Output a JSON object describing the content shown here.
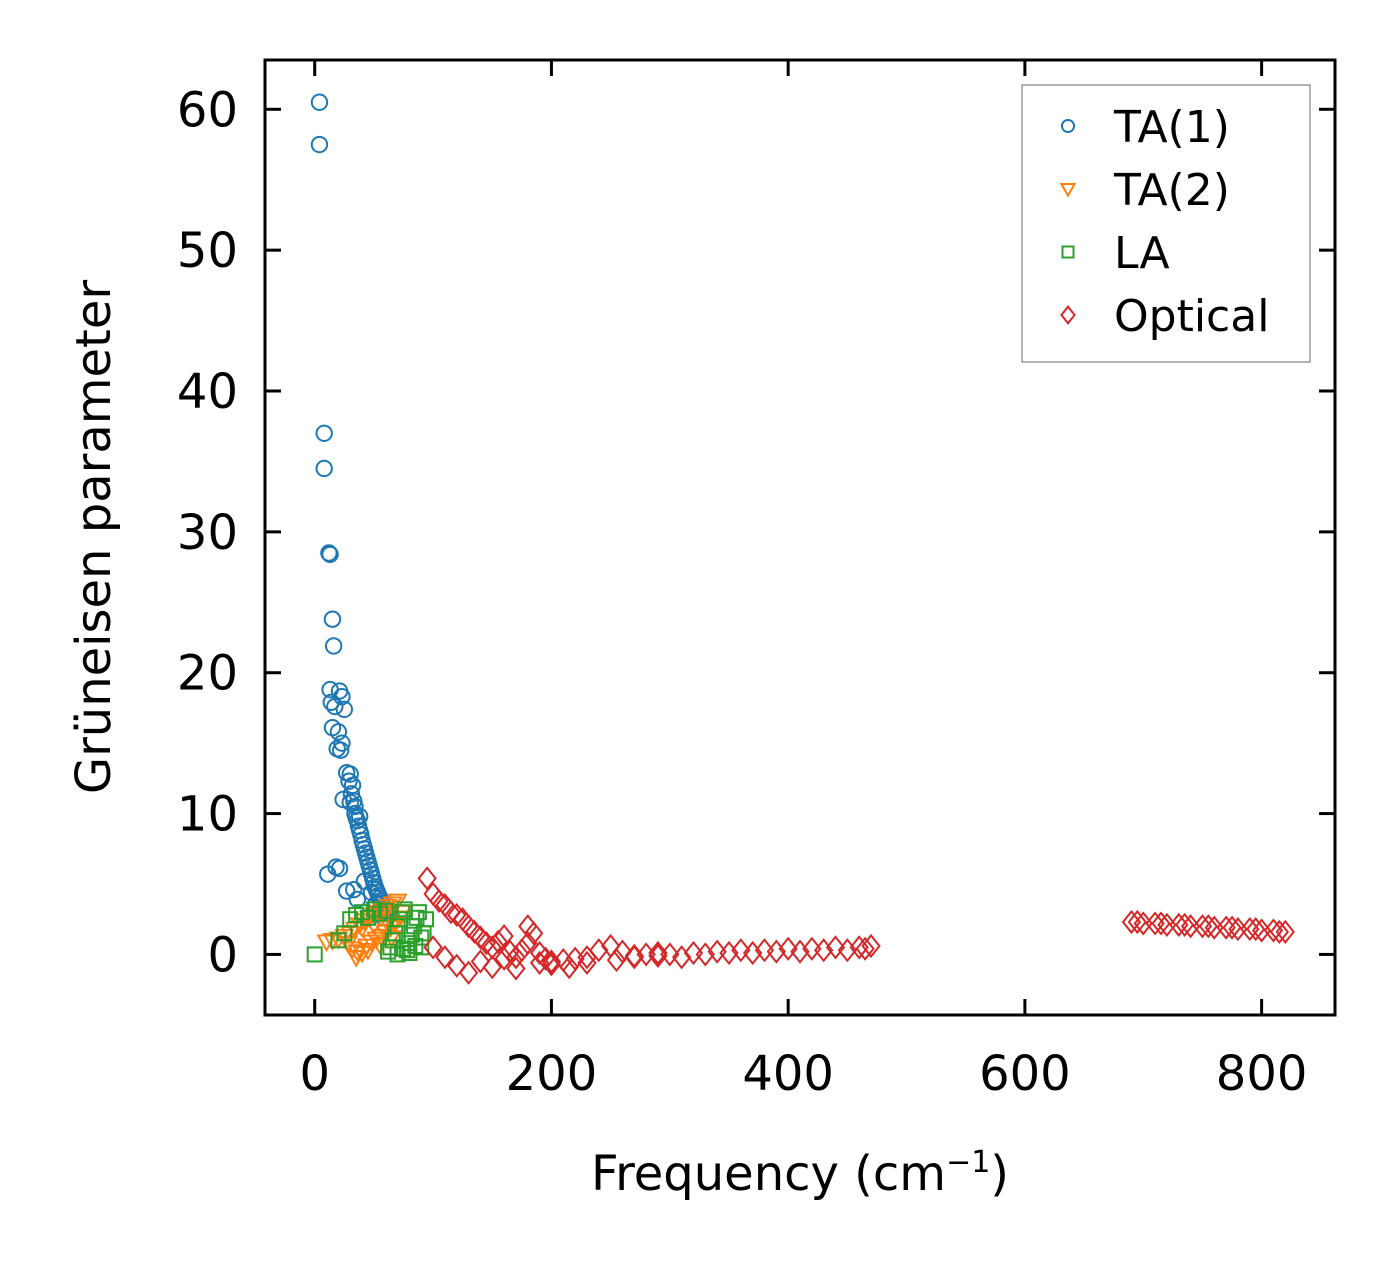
{
  "chart_data": {
    "type": "scatter",
    "title": "",
    "xlabel": "Frequency (cm",
    "xlabel_sup": "−1",
    "xlabel_tail": ")",
    "ylabel": "Grüneisen parameter",
    "xlim": [
      -42,
      862
    ],
    "ylim": [
      -4.3,
      63.5
    ],
    "xticks": [
      0,
      200,
      400,
      600,
      800
    ],
    "yticks": [
      0,
      10,
      20,
      30,
      40,
      50,
      60
    ],
    "xtick_labels": [
      "0",
      "200",
      "400",
      "600",
      "800"
    ],
    "ytick_labels": [
      "0",
      "10",
      "20",
      "30",
      "40",
      "50",
      "60"
    ],
    "legend_position": "top-right",
    "series": [
      {
        "name": "TA(1)",
        "marker": "circle",
        "color": "#1f77b4",
        "x": [
          4,
          4,
          8,
          8,
          12,
          13,
          15,
          16,
          13,
          21,
          23,
          25,
          14,
          17,
          15,
          20,
          23,
          19,
          22,
          27,
          30,
          29,
          32,
          31,
          33,
          34,
          34,
          35,
          36,
          37,
          38,
          39,
          40,
          41,
          42,
          43,
          44,
          45,
          46,
          47,
          48,
          49,
          50,
          51,
          52,
          53,
          54,
          55,
          56,
          57,
          58,
          60,
          62,
          64,
          38,
          30,
          24,
          18,
          11,
          21,
          27,
          33,
          36,
          42,
          48,
          52,
          55,
          58
        ],
        "y": [
          60.5,
          57.5,
          37,
          34.5,
          28.5,
          28.4,
          23.8,
          21.9,
          18.8,
          18.7,
          18.3,
          17.4,
          17.9,
          17.6,
          16.1,
          15.8,
          15.0,
          14.6,
          14.5,
          12.9,
          12.8,
          12.3,
          12.0,
          11.4,
          10.9,
          10.5,
          10.0,
          9.7,
          9.5,
          9.1,
          8.8,
          8.5,
          8.1,
          7.8,
          7.5,
          7.2,
          6.9,
          6.6,
          6.3,
          6.0,
          5.7,
          5.4,
          5.1,
          4.8,
          4.6,
          4.4,
          4.2,
          4.0,
          3.8,
          3.6,
          3.4,
          3.2,
          3.0,
          2.8,
          9.8,
          10.8,
          11.0,
          6.2,
          5.7,
          6.1,
          4.5,
          4.6,
          3.9,
          5.2,
          4.4,
          3.6,
          3.1,
          2.6
        ]
      },
      {
        "name": "TA(2)",
        "marker": "triangle-down",
        "color": "#ff7f0e",
        "x": [
          10,
          15,
          20,
          25,
          28,
          30,
          32,
          34,
          36,
          38,
          40,
          42,
          44,
          46,
          48,
          50,
          52,
          54,
          56,
          58,
          60,
          62,
          64,
          66,
          68,
          70,
          35,
          45,
          55,
          65,
          72,
          74,
          40,
          50,
          60
        ],
        "y": [
          0.9,
          1.0,
          1.1,
          1.3,
          0.8,
          1.5,
          0.4,
          1.8,
          0.2,
          2.1,
          0.1,
          2.4,
          0.6,
          2.6,
          0.9,
          2.8,
          1.1,
          3.0,
          1.3,
          3.2,
          1.6,
          3.4,
          1.9,
          3.6,
          2.2,
          3.8,
          -0.2,
          0.3,
          0.7,
          1.2,
          2.6,
          3.0,
          1.9,
          2.1,
          2.5
        ]
      },
      {
        "name": "LA",
        "marker": "square",
        "color": "#2ca02c",
        "x": [
          0,
          20,
          25,
          30,
          35,
          40,
          45,
          50,
          55,
          60,
          62,
          64,
          66,
          68,
          70,
          72,
          74,
          76,
          78,
          80,
          82,
          84,
          86,
          88,
          90,
          92,
          94,
          70,
          75,
          80,
          85,
          90
        ],
        "y": [
          0,
          1.0,
          1.5,
          2.5,
          2.8,
          3.0,
          2.6,
          3.2,
          2.9,
          3.1,
          0.2,
          0.5,
          1.0,
          1.5,
          2.0,
          2.5,
          3.0,
          3.2,
          0.3,
          0.8,
          1.4,
          2.0,
          2.6,
          3.0,
          0.5,
          1.5,
          2.5,
          0.0,
          0.4,
          0.1,
          0.6,
          1.2
        ]
      },
      {
        "name": "Optical",
        "marker": "diamond",
        "color": "#d62728",
        "x": [
          95,
          100,
          105,
          110,
          115,
          120,
          125,
          130,
          135,
          140,
          145,
          150,
          155,
          160,
          165,
          170,
          175,
          180,
          185,
          190,
          195,
          200,
          210,
          220,
          230,
          240,
          250,
          260,
          270,
          280,
          290,
          300,
          320,
          340,
          360,
          380,
          400,
          420,
          440,
          460,
          470,
          100,
          110,
          120,
          130,
          140,
          150,
          160,
          170,
          180,
          190,
          200,
          215,
          230,
          255,
          270,
          290,
          310,
          330,
          350,
          370,
          390,
          410,
          430,
          450,
          465,
          690,
          700,
          710,
          720,
          730,
          740,
          750,
          760,
          770,
          780,
          790,
          800,
          810,
          820,
          695,
          715,
          735,
          755,
          775,
          795,
          815
        ],
        "y": [
          5.4,
          4.3,
          3.8,
          3.5,
          3.0,
          2.8,
          2.5,
          2.0,
          1.6,
          1.2,
          0.8,
          0.5,
          0.9,
          1.3,
          0.2,
          -0.2,
          0.3,
          2.0,
          1.5,
          0.1,
          -0.3,
          -0.5,
          -0.4,
          -0.3,
          -0.2,
          0.3,
          0.6,
          0.2,
          -0.1,
          0.0,
          0.1,
          0.0,
          0.1,
          0.2,
          0.3,
          0.3,
          0.4,
          0.4,
          0.5,
          0.5,
          0.6,
          0.5,
          -0.2,
          -0.8,
          -1.3,
          -0.5,
          -0.9,
          -0.3,
          -1.0,
          0.8,
          -0.6,
          -0.7,
          -0.9,
          -0.6,
          -0.4,
          -0.2,
          -0.1,
          -0.2,
          0.0,
          0.1,
          0.1,
          0.2,
          0.2,
          0.3,
          0.3,
          0.4,
          2.3,
          2.2,
          2.2,
          2.1,
          2.1,
          2.0,
          2.0,
          1.9,
          1.9,
          1.8,
          1.8,
          1.7,
          1.7,
          1.6,
          2.3,
          2.2,
          2.1,
          2.0,
          1.9,
          1.8,
          1.6
        ]
      }
    ]
  }
}
